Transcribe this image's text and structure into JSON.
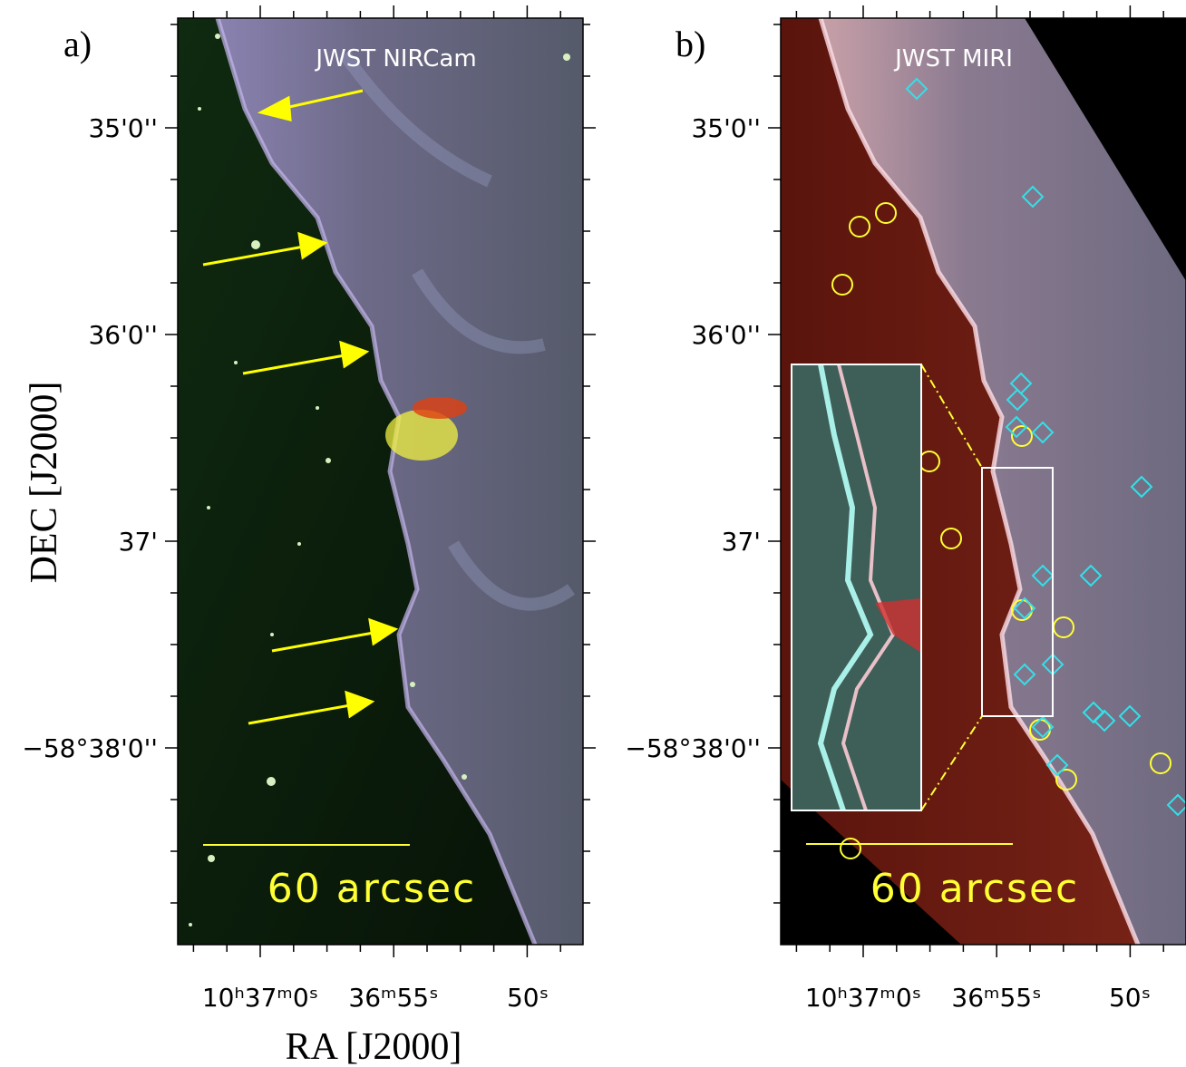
{
  "axes": {
    "ylabel": "DEC [J2000]",
    "xlabel": "RA [J2000]"
  },
  "panels": [
    {
      "label": "a)",
      "instrument": "JWST NIRCam",
      "scale_bar": "60 arcsec",
      "yticks": [
        "35'0''",
        "36'0''",
        "37'",
        "−58°38'0''"
      ],
      "xticks": [
        "10ʰ37ᵐ0ˢ",
        "36ᵐ55ˢ",
        "50ˢ"
      ]
    },
    {
      "label": "b)",
      "instrument": "JWST MIRI",
      "scale_bar": "60 arcsec",
      "yticks": [
        "35'0''",
        "36'0''",
        "37'",
        "−58°38'0''"
      ],
      "xticks": [
        "10ʰ37ᵐ0ˢ",
        "36ᵐ55ˢ",
        "50ˢ"
      ]
    }
  ]
}
